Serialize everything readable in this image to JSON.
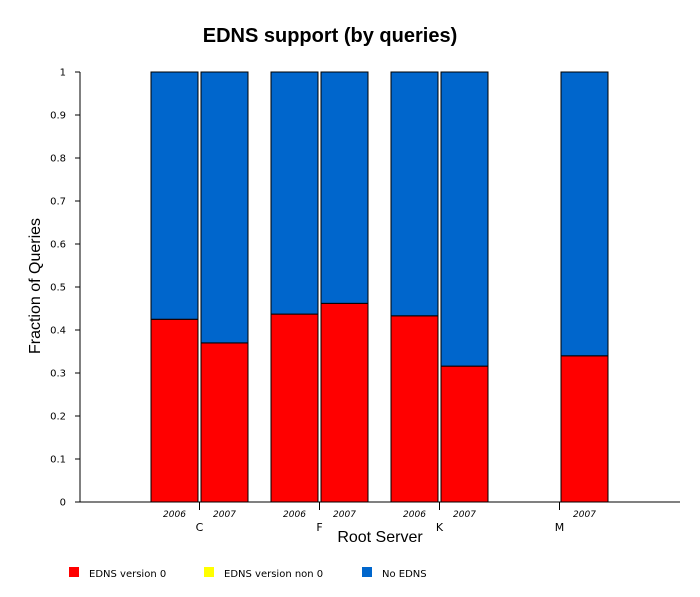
{
  "chart_data": {
    "type": "bar",
    "stacked": true,
    "title": "EDNS support (by queries)",
    "xlabel": "Root Server",
    "ylabel": "Fraction of Queries",
    "ylim": [
      0,
      1
    ],
    "yticks": [
      "0",
      "0.1",
      "0.2",
      "0.3",
      "0.4",
      "0.5",
      "0.6",
      "0.7",
      "0.8",
      "0.9",
      "1"
    ],
    "groups": [
      {
        "server": "C",
        "bars": [
          {
            "year": "2006",
            "values": [
              0.425,
              0.0,
              0.575
            ]
          },
          {
            "year": "2007",
            "values": [
              0.37,
              0.0,
              0.63
            ]
          }
        ]
      },
      {
        "server": "F",
        "bars": [
          {
            "year": "2006",
            "values": [
              0.437,
              0.0,
              0.563
            ]
          },
          {
            "year": "2007",
            "values": [
              0.462,
              0.0,
              0.538
            ]
          }
        ]
      },
      {
        "server": "K",
        "bars": [
          {
            "year": "2006",
            "values": [
              0.433,
              0.0,
              0.567
            ]
          },
          {
            "year": "2007",
            "values": [
              0.316,
              0.0,
              0.684
            ]
          }
        ]
      },
      {
        "server": "M",
        "bars": [
          {
            "year": "2007",
            "values": [
              0.34,
              0.0,
              0.66
            ]
          }
        ]
      }
    ],
    "series": [
      {
        "name": "EDNS version 0",
        "color": "#ff0000"
      },
      {
        "name": "EDNS version non 0",
        "color": "#ffff00"
      },
      {
        "name": "No EDNS",
        "color": "#0066cc"
      }
    ],
    "legend_position": "bottom",
    "grid": false
  }
}
